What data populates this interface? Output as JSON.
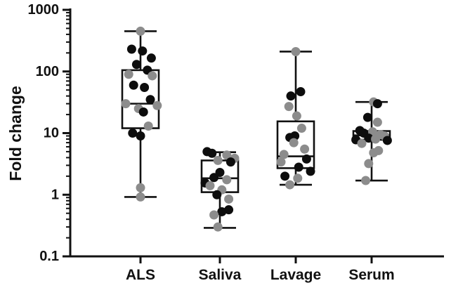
{
  "chart_data": {
    "type": "box",
    "ylabel": "Fold change",
    "xlabel": "",
    "yscale": "log",
    "ylim": [
      0.1,
      1000
    ],
    "yticks": [
      {
        "value": 0.1,
        "label": "0.1"
      },
      {
        "value": 1,
        "label": "1"
      },
      {
        "value": 10,
        "label": "10"
      },
      {
        "value": 100,
        "label": "100"
      },
      {
        "value": 1000,
        "label": "1000"
      }
    ],
    "categories": [
      "ALS",
      "Saliva",
      "Lavage",
      "Serum"
    ],
    "point_colors": {
      "black": "#0d0d0d",
      "gray": "#8c8c8c"
    },
    "box_color": "#111111",
    "groups": [
      {
        "category": "ALS",
        "box": {
          "min": 0.92,
          "q1": 12,
          "median": 30,
          "q3": 105,
          "max": 450
        },
        "points": [
          {
            "y": 450,
            "j": 0.0,
            "c": "gray"
          },
          {
            "y": 230,
            "j": -0.45,
            "c": "black"
          },
          {
            "y": 215,
            "j": 0.1,
            "c": "black"
          },
          {
            "y": 165,
            "j": 0.55,
            "c": "black"
          },
          {
            "y": 130,
            "j": -0.2,
            "c": "black"
          },
          {
            "y": 105,
            "j": 0.35,
            "c": "black"
          },
          {
            "y": 90,
            "j": -0.6,
            "c": "gray"
          },
          {
            "y": 85,
            "j": 0.6,
            "c": "gray"
          },
          {
            "y": 60,
            "j": -0.35,
            "c": "black"
          },
          {
            "y": 55,
            "j": 0.2,
            "c": "black"
          },
          {
            "y": 35,
            "j": 0.5,
            "c": "black"
          },
          {
            "y": 30,
            "j": -0.75,
            "c": "gray"
          },
          {
            "y": 28,
            "j": 0.85,
            "c": "gray"
          },
          {
            "y": 25,
            "j": -0.1,
            "c": "gray"
          },
          {
            "y": 22,
            "j": 0.15,
            "c": "black"
          },
          {
            "y": 13,
            "j": 0.4,
            "c": "gray"
          },
          {
            "y": 10,
            "j": -0.4,
            "c": "black"
          },
          {
            "y": 9,
            "j": 0.0,
            "c": "black"
          },
          {
            "y": 1.3,
            "j": 0.0,
            "c": "gray"
          },
          {
            "y": 0.92,
            "j": 0.0,
            "c": "gray"
          }
        ]
      },
      {
        "category": "Saliva",
        "box": {
          "min": 0.29,
          "q1": 1.1,
          "median": 1.85,
          "q3": 3.6,
          "max": 4.9
        },
        "points": [
          {
            "y": 5.0,
            "j": -0.65,
            "c": "black"
          },
          {
            "y": 4.7,
            "j": -0.4,
            "c": "black"
          },
          {
            "y": 4.4,
            "j": 0.35,
            "c": "gray"
          },
          {
            "y": 3.9,
            "j": 0.75,
            "c": "gray"
          },
          {
            "y": 3.6,
            "j": -0.1,
            "c": "gray"
          },
          {
            "y": 3.4,
            "j": 0.55,
            "c": "black"
          },
          {
            "y": 2.3,
            "j": 0.0,
            "c": "black"
          },
          {
            "y": 1.9,
            "j": -0.3,
            "c": "black"
          },
          {
            "y": 1.75,
            "j": 0.35,
            "c": "gray"
          },
          {
            "y": 1.55,
            "j": -0.75,
            "c": "black"
          },
          {
            "y": 1.4,
            "j": -0.5,
            "c": "gray"
          },
          {
            "y": 1.2,
            "j": 0.1,
            "c": "gray"
          },
          {
            "y": 1.0,
            "j": -0.15,
            "c": "black"
          },
          {
            "y": 0.85,
            "j": 0.45,
            "c": "gray"
          },
          {
            "y": 0.57,
            "j": 0.45,
            "c": "black"
          },
          {
            "y": 0.53,
            "j": 0.1,
            "c": "black"
          },
          {
            "y": 0.47,
            "j": -0.3,
            "c": "gray"
          },
          {
            "y": 0.3,
            "j": -0.1,
            "c": "gray"
          }
        ]
      },
      {
        "category": "Lavage",
        "box": {
          "min": 1.45,
          "q1": 2.7,
          "median": 4.2,
          "q3": 15.5,
          "max": 210
        },
        "points": [
          {
            "y": 210,
            "j": 0.0,
            "c": "gray"
          },
          {
            "y": 47,
            "j": 0.25,
            "c": "black"
          },
          {
            "y": 40,
            "j": -0.25,
            "c": "black"
          },
          {
            "y": 27,
            "j": -0.35,
            "c": "gray"
          },
          {
            "y": 19,
            "j": 0.05,
            "c": "gray"
          },
          {
            "y": 12,
            "j": 0.3,
            "c": "gray"
          },
          {
            "y": 9,
            "j": -0.05,
            "c": "black"
          },
          {
            "y": 8.5,
            "j": -0.3,
            "c": "black"
          },
          {
            "y": 7,
            "j": -0.1,
            "c": "gray"
          },
          {
            "y": 5.5,
            "j": 0.45,
            "c": "gray"
          },
          {
            "y": 4.5,
            "j": -0.6,
            "c": "gray"
          },
          {
            "y": 3.8,
            "j": 0.55,
            "c": "black"
          },
          {
            "y": 3.4,
            "j": -0.75,
            "c": "gray"
          },
          {
            "y": 2.8,
            "j": 0.15,
            "c": "black"
          },
          {
            "y": 2.4,
            "j": 0.75,
            "c": "black"
          },
          {
            "y": 2.0,
            "j": -0.55,
            "c": "black"
          },
          {
            "y": 1.85,
            "j": 0.1,
            "c": "gray"
          },
          {
            "y": 1.45,
            "j": -0.3,
            "c": "gray"
          }
        ]
      },
      {
        "category": "Serum",
        "box": {
          "min": 1.7,
          "q1": 7.8,
          "median": 9.2,
          "q3": 10.8,
          "max": 32
        },
        "points": [
          {
            "y": 32,
            "j": 0.1,
            "c": "gray"
          },
          {
            "y": 30,
            "j": 0.3,
            "c": "black"
          },
          {
            "y": 18,
            "j": -0.2,
            "c": "black"
          },
          {
            "y": 15,
            "j": 0.3,
            "c": "gray"
          },
          {
            "y": 11,
            "j": -0.6,
            "c": "black"
          },
          {
            "y": 10.5,
            "j": 0.05,
            "c": "gray"
          },
          {
            "y": 10,
            "j": -0.4,
            "c": "black"
          },
          {
            "y": 9.5,
            "j": 0.45,
            "c": "gray"
          },
          {
            "y": 9,
            "j": 0.65,
            "c": "gray"
          },
          {
            "y": 8.3,
            "j": -0.15,
            "c": "black"
          },
          {
            "y": 8.0,
            "j": 0.2,
            "c": "gray"
          },
          {
            "y": 7.8,
            "j": -0.8,
            "c": "black"
          },
          {
            "y": 7.6,
            "j": 0.8,
            "c": "black"
          },
          {
            "y": 6.8,
            "j": -0.5,
            "c": "gray"
          },
          {
            "y": 5.2,
            "j": 0.35,
            "c": "gray"
          },
          {
            "y": 4.8,
            "j": 0.1,
            "c": "gray"
          },
          {
            "y": 3.2,
            "j": -0.15,
            "c": "gray"
          },
          {
            "y": 1.7,
            "j": -0.3,
            "c": "gray"
          }
        ]
      }
    ]
  }
}
